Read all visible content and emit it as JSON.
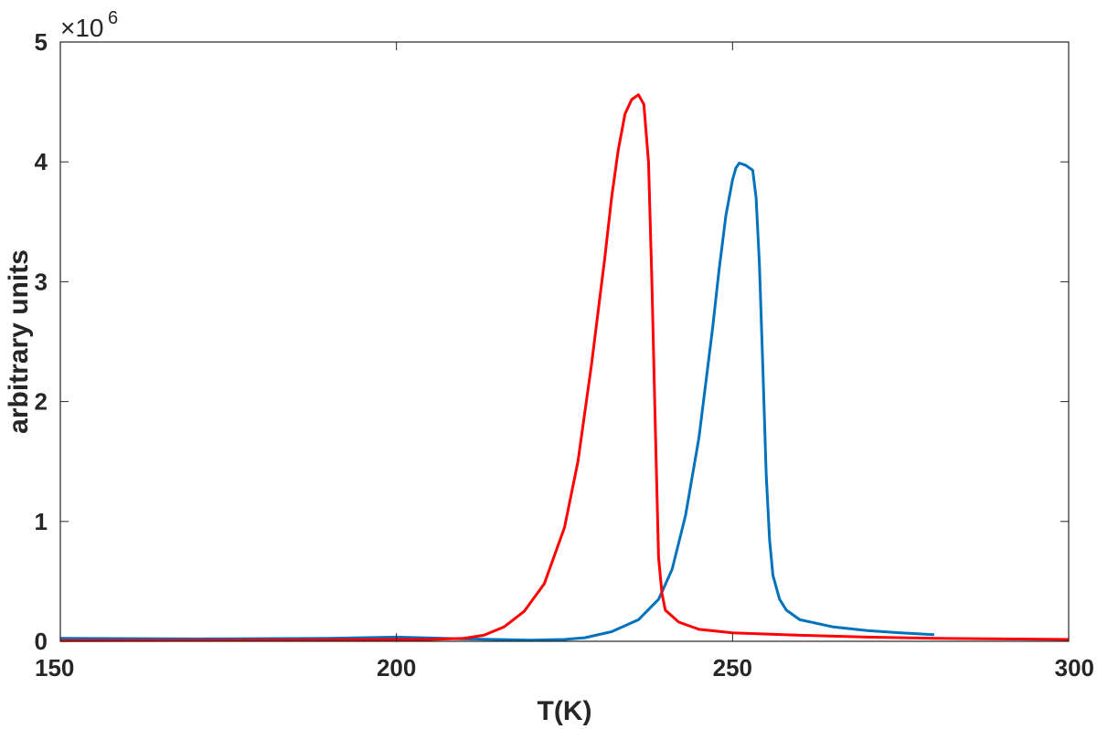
{
  "chart_data": {
    "type": "line",
    "title": "",
    "xlabel": "T(K)",
    "ylabel": "arbitrary units",
    "xlim": [
      150,
      300
    ],
    "ylim": [
      0,
      5000000
    ],
    "x_ticks": [
      "150",
      "200",
      "250",
      "300"
    ],
    "y_ticks": [
      "0",
      "1",
      "2",
      "3",
      "4",
      "5"
    ],
    "y_tick_values": [
      0,
      1,
      2,
      3,
      4,
      5
    ],
    "x_tick_values": [
      150,
      200,
      250,
      300
    ],
    "y_multiplier": {
      "base": "×10",
      "exponent": "6"
    },
    "grid": false,
    "series": [
      {
        "color": "#0072BD",
        "x": [
          150,
          170,
          190,
          200,
          210,
          220,
          225,
          228,
          232,
          236,
          239,
          241,
          243,
          245,
          247,
          248,
          249,
          250,
          250.5,
          251,
          252,
          253,
          253.5,
          254,
          254.5,
          255,
          255.5,
          256,
          257,
          258,
          260,
          265,
          270,
          275,
          280
        ],
        "y": [
          25000,
          20000,
          25000,
          35000,
          20000,
          10000,
          15000,
          30000,
          80000,
          180000,
          350000,
          600000,
          1050000,
          1700000,
          2600000,
          3100000,
          3550000,
          3850000,
          3950000,
          3990000,
          3970000,
          3930000,
          3700000,
          3150000,
          2300000,
          1400000,
          850000,
          550000,
          350000,
          260000,
          180000,
          120000,
          90000,
          70000,
          55000
        ]
      },
      {
        "color": "#FF0000",
        "x": [
          150,
          170,
          190,
          200,
          205,
          210,
          213,
          216,
          219,
          222,
          225,
          227,
          229,
          231,
          232,
          233,
          234,
          235,
          236,
          236.8,
          237.5,
          238,
          238.5,
          239,
          239.5,
          240,
          242,
          245,
          250,
          260,
          270,
          280,
          290,
          300
        ],
        "y": [
          5000,
          8000,
          12000,
          15000,
          15000,
          25000,
          50000,
          120000,
          250000,
          480000,
          950000,
          1500000,
          2300000,
          3200000,
          3700000,
          4100000,
          4400000,
          4520000,
          4560000,
          4480000,
          4000000,
          3000000,
          1800000,
          700000,
          400000,
          260000,
          160000,
          100000,
          70000,
          50000,
          35000,
          25000,
          20000,
          15000
        ]
      }
    ]
  }
}
